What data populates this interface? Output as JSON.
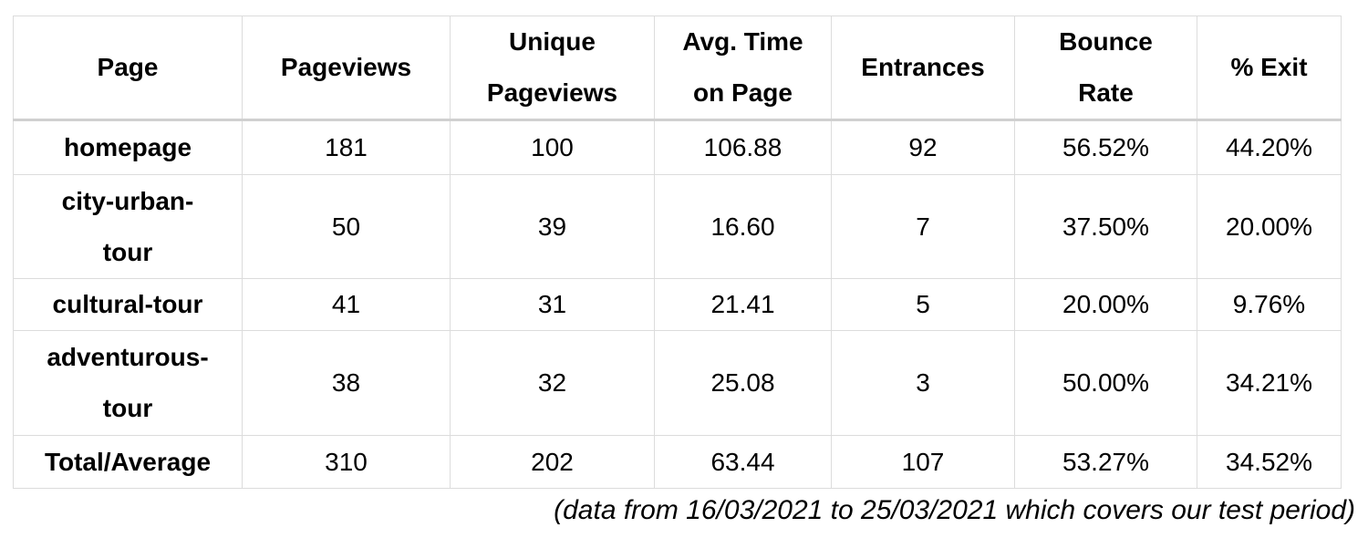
{
  "table": {
    "headers": {
      "page": "Page",
      "pageviews": "Pageviews",
      "unique_pageviews_line1": "Unique",
      "unique_pageviews_line2": "Pageviews",
      "avg_time_line1": "Avg. Time",
      "avg_time_line2": "on Page",
      "entrances": "Entrances",
      "bounce_rate_line1": "Bounce",
      "bounce_rate_line2": "Rate",
      "exit": "% Exit"
    },
    "rows": [
      {
        "page_line1": "homepage",
        "page_line2": "",
        "pageviews": "181",
        "unique_pageviews": "100",
        "avg_time": "106.88",
        "entrances": "92",
        "bounce_rate": "56.52%",
        "exit": "44.20%"
      },
      {
        "page_line1": "city-urban-",
        "page_line2": "tour",
        "pageviews": "50",
        "unique_pageviews": "39",
        "avg_time": "16.60",
        "entrances": "7",
        "bounce_rate": "37.50%",
        "exit": "20.00%"
      },
      {
        "page_line1": "cultural-tour",
        "page_line2": "",
        "pageviews": "41",
        "unique_pageviews": "31",
        "avg_time": "21.41",
        "entrances": "5",
        "bounce_rate": "20.00%",
        "exit": "9.76%"
      },
      {
        "page_line1": "adventurous-",
        "page_line2": "tour",
        "pageviews": "38",
        "unique_pageviews": "32",
        "avg_time": "25.08",
        "entrances": "3",
        "bounce_rate": "50.00%",
        "exit": "34.21%"
      },
      {
        "page_line1": "Total/Average",
        "page_line2": "",
        "pageviews": "310",
        "unique_pageviews": "202",
        "avg_time": "63.44",
        "entrances": "107",
        "bounce_rate": "53.27%",
        "exit": "34.52%"
      }
    ]
  },
  "footnote": "(data from 16/03/2021 to 25/03/2021 which covers our test period)"
}
